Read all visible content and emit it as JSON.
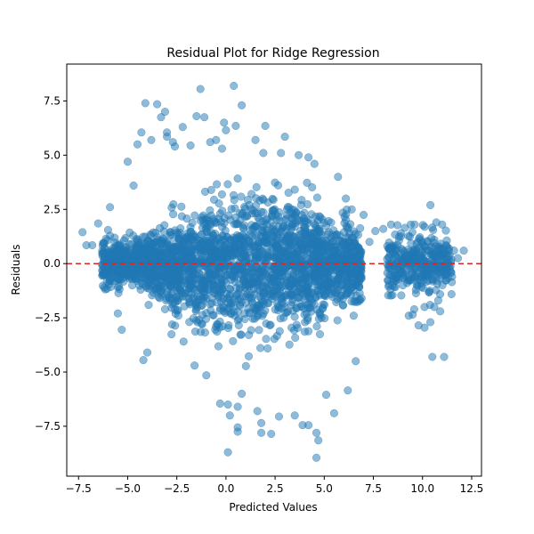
{
  "chart_data": {
    "type": "scatter",
    "title": "Residual Plot for Ridge Regression",
    "xlabel": "Predicted Values",
    "ylabel": "Residuals",
    "xlim": [
      -8.1,
      13.0
    ],
    "ylim": [
      -9.8,
      9.2
    ],
    "xticks": [
      -7.5,
      -5.0,
      -2.5,
      0.0,
      2.5,
      5.0,
      7.5,
      10.0,
      12.5
    ],
    "xtick_labels": [
      "−7.5",
      "−5.0",
      "−2.5",
      "0.0",
      "2.5",
      "5.0",
      "7.5",
      "10.0",
      "12.5"
    ],
    "yticks": [
      -7.5,
      -5.0,
      -2.5,
      0.0,
      2.5,
      5.0,
      7.5
    ],
    "ytick_labels": [
      "−7.5",
      "−5.0",
      "−2.5",
      "0.0",
      "2.5",
      "5.0",
      "7.5"
    ],
    "point_color": "#1f77b4",
    "point_alpha": 0.5,
    "reference_line": {
      "y": 0,
      "color": "#d62728",
      "style": "dashed"
    },
    "grid": false,
    "clusters": [
      {
        "x_range": [
          -6.5,
          7.5
        ],
        "y_spread": [
          -5.0,
          4.5
        ],
        "description": "main dense cluster"
      },
      {
        "x_range": [
          8.0,
          11.5
        ],
        "y_spread": [
          -2.5,
          2.0
        ],
        "description": "secondary cluster"
      }
    ],
    "points": [
      [
        -7.3,
        1.45
      ],
      [
        -7.1,
        0.85
      ],
      [
        -6.8,
        0.85
      ],
      [
        -6.5,
        1.85
      ],
      [
        -6.3,
        -0.55
      ],
      [
        -6.2,
        -1.1
      ],
      [
        -5.9,
        2.6
      ],
      [
        -5.5,
        -2.3
      ],
      [
        -5.3,
        -3.05
      ],
      [
        -5.0,
        4.7
      ],
      [
        -4.7,
        3.6
      ],
      [
        -4.5,
        5.5
      ],
      [
        -4.3,
        6.05
      ],
      [
        -4.1,
        7.4
      ],
      [
        -4.2,
        -4.45
      ],
      [
        -4.0,
        -4.1
      ],
      [
        -3.8,
        5.7
      ],
      [
        -3.5,
        7.35
      ],
      [
        -3.3,
        6.75
      ],
      [
        -3.1,
        7.0
      ],
      [
        -3.0,
        6.05
      ],
      [
        -3.0,
        5.85
      ],
      [
        -2.7,
        5.6
      ],
      [
        -2.6,
        5.4
      ],
      [
        -2.2,
        6.3
      ],
      [
        -1.8,
        5.45
      ],
      [
        -1.5,
        6.8
      ],
      [
        -1.3,
        8.05
      ],
      [
        -1.1,
        6.75
      ],
      [
        -0.8,
        5.6
      ],
      [
        -0.5,
        5.7
      ],
      [
        -0.2,
        5.3
      ],
      [
        -0.1,
        6.5
      ],
      [
        0.0,
        6.15
      ],
      [
        0.5,
        6.35
      ],
      [
        0.8,
        7.3
      ],
      [
        1.5,
        5.7
      ],
      [
        2.0,
        6.35
      ],
      [
        1.9,
        5.1
      ],
      [
        2.8,
        5.1
      ],
      [
        3.0,
        5.85
      ],
      [
        3.7,
        5.0
      ],
      [
        4.2,
        4.9
      ],
      [
        4.5,
        4.6
      ],
      [
        0.4,
        8.2
      ],
      [
        -1.6,
        -4.7
      ],
      [
        -1.0,
        -5.15
      ],
      [
        -0.3,
        -6.45
      ],
      [
        0.1,
        -6.5
      ],
      [
        0.2,
        -7.0
      ],
      [
        0.6,
        -6.6
      ],
      [
        0.6,
        -7.55
      ],
      [
        0.6,
        -7.75
      ],
      [
        0.8,
        -6.0
      ],
      [
        0.1,
        -8.7
      ],
      [
        1.6,
        -6.8
      ],
      [
        1.8,
        -7.35
      ],
      [
        1.8,
        -7.8
      ],
      [
        2.3,
        -7.85
      ],
      [
        2.7,
        -7.05
      ],
      [
        3.5,
        -7.0
      ],
      [
        3.9,
        -7.45
      ],
      [
        4.2,
        -7.45
      ],
      [
        4.6,
        -7.8
      ],
      [
        4.7,
        -8.15
      ],
      [
        4.6,
        -8.95
      ],
      [
        5.1,
        -6.05
      ],
      [
        5.5,
        -6.9
      ],
      [
        6.2,
        -5.85
      ],
      [
        6.6,
        -4.5
      ],
      [
        6.5,
        -2.4
      ],
      [
        6.9,
        -1.6
      ],
      [
        7.0,
        2.25
      ],
      [
        7.3,
        1.0
      ],
      [
        5.7,
        4.0
      ],
      [
        6.1,
        3.0
      ],
      [
        6.4,
        2.5
      ],
      [
        7.6,
        1.5
      ],
      [
        8.0,
        1.6
      ],
      [
        8.4,
        1.8
      ],
      [
        8.9,
        1.4
      ],
      [
        9.1,
        1.65
      ],
      [
        9.4,
        1.8
      ],
      [
        9.6,
        1.8
      ],
      [
        10.1,
        1.7
      ],
      [
        10.4,
        2.7
      ],
      [
        10.6,
        1.1
      ],
      [
        10.7,
        1.9
      ],
      [
        11.0,
        1.8
      ],
      [
        11.2,
        0.85
      ],
      [
        11.6,
        0.6
      ],
      [
        12.1,
        0.6
      ],
      [
        11.8,
        0.25
      ],
      [
        8.5,
        -0.7
      ],
      [
        9.3,
        -2.4
      ],
      [
        9.5,
        -2.35
      ],
      [
        9.8,
        -2.85
      ],
      [
        10.1,
        -2.95
      ],
      [
        10.4,
        -2.7
      ],
      [
        10.6,
        -2.0
      ],
      [
        10.8,
        -1.7
      ],
      [
        10.9,
        -2.2
      ],
      [
        10.5,
        -4.3
      ],
      [
        11.1,
        -4.3
      ],
      [
        10.1,
        -2.0
      ],
      [
        9.0,
        -1.0
      ],
      [
        11.3,
        0.0
      ],
      [
        11.5,
        -0.6
      ]
    ]
  }
}
